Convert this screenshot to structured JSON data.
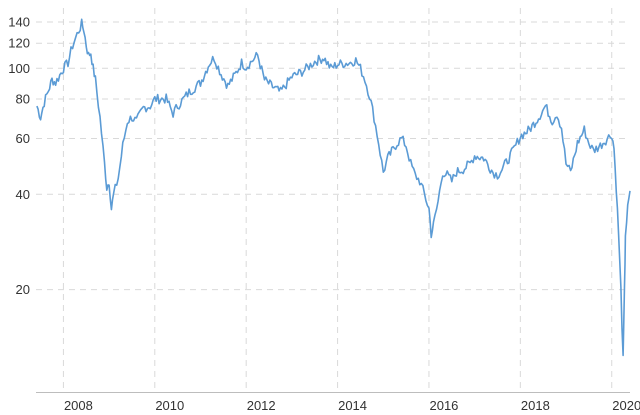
{
  "chart_data": {
    "type": "line",
    "title": "",
    "xlabel": "",
    "ylabel": "",
    "y_scale": "log",
    "grid": true,
    "legend": "none",
    "line_color": "#5b9bd5",
    "x_range": [
      2007.4,
      2020.4
    ],
    "y_range": [
      9.5,
      155
    ],
    "x_ticks": [
      2008,
      2010,
      2012,
      2014,
      2016,
      2018,
      2020
    ],
    "x_tick_labels": [
      "2008",
      "2010",
      "2012",
      "2014",
      "2016",
      "2018",
      "2020"
    ],
    "y_ticks": [
      20,
      40,
      60,
      80,
      100,
      120,
      140
    ],
    "y_tick_labels": [
      "20",
      "40",
      "60",
      "80",
      "100",
      "120",
      "140"
    ],
    "series": [
      {
        "x": [
          2007.42,
          2007.5,
          2007.58,
          2007.67,
          2007.75,
          2007.83,
          2007.92,
          2008.0,
          2008.1,
          2008.2,
          2008.3,
          2008.4,
          2008.45,
          2008.5,
          2008.55,
          2008.6,
          2008.65,
          2008.7,
          2008.8,
          2008.9,
          2008.95,
          2009.0,
          2009.05,
          2009.1,
          2009.2,
          2009.3,
          2009.4,
          2009.5,
          2009.6,
          2009.75,
          2009.9,
          2010.0,
          2010.25,
          2010.4,
          2010.5,
          2010.75,
          2011.0,
          2011.2,
          2011.3,
          2011.45,
          2011.6,
          2011.75,
          2011.9,
          2012.0,
          2012.25,
          2012.4,
          2012.55,
          2012.75,
          2013.0,
          2013.25,
          2013.5,
          2013.7,
          2013.85,
          2014.0,
          2014.25,
          2014.4,
          2014.5,
          2014.6,
          2014.7,
          2014.8,
          2014.9,
          2015.0,
          2015.1,
          2015.3,
          2015.4,
          2015.5,
          2015.6,
          2015.7,
          2015.8,
          2015.9,
          2016.0,
          2016.05,
          2016.1,
          2016.2,
          2016.3,
          2016.4,
          2016.5,
          2016.6,
          2016.75,
          2016.9,
          2017.0,
          2017.2,
          2017.4,
          2017.5,
          2017.6,
          2017.75,
          2017.9,
          2018.0,
          2018.2,
          2018.4,
          2018.55,
          2018.7,
          2018.8,
          2018.9,
          2019.0,
          2019.1,
          2019.25,
          2019.4,
          2019.5,
          2019.6,
          2019.75,
          2019.9,
          2020.0,
          2020.05,
          2020.1,
          2020.15,
          2020.2,
          2020.25,
          2020.28,
          2020.3,
          2020.35,
          2020.4
        ],
        "values": [
          76,
          70,
          78,
          85,
          92,
          90,
          95,
          100,
          104,
          118,
          128,
          138,
          132,
          118,
          110,
          112,
          100,
          92,
          70,
          50,
          42,
          44,
          36,
          40,
          45,
          57,
          68,
          70,
          68,
          75,
          76,
          80,
          80,
          72,
          76,
          84,
          90,
          104,
          108,
          96,
          88,
          95,
          104,
          101,
          110,
          92,
          88,
          84,
          94,
          98,
          105,
          108,
          100,
          103,
          104,
          106,
          100,
          92,
          82,
          70,
          58,
          47,
          52,
          58,
          60,
          57,
          50,
          46,
          44,
          40,
          36,
          30,
          32,
          38,
          47,
          46,
          44,
          47,
          48,
          50,
          53,
          52,
          47,
          46,
          48,
          52,
          57,
          61,
          64,
          70,
          76,
          68,
          72,
          65,
          50,
          47,
          58,
          64,
          58,
          55,
          57,
          60,
          62,
          56,
          42,
          30,
          20,
          12,
          20,
          30,
          36,
          41
        ]
      }
    ]
  }
}
